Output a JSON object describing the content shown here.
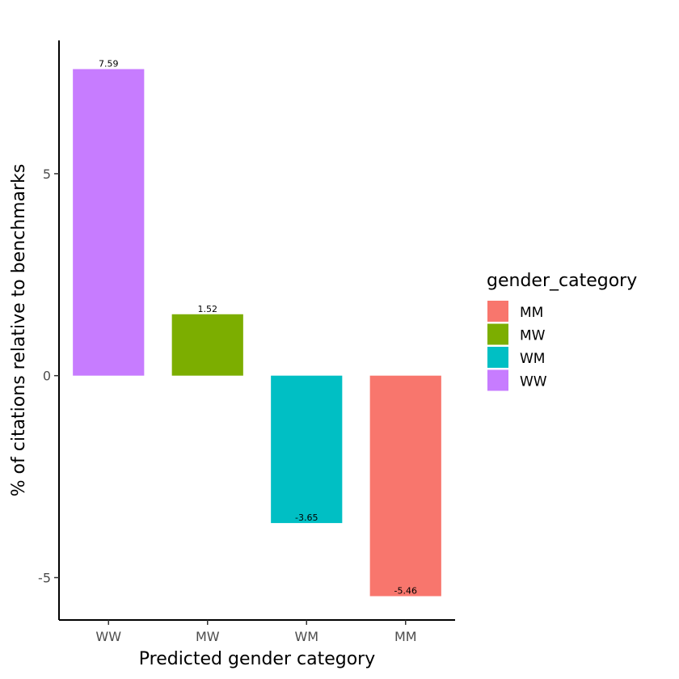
{
  "chart_data": {
    "type": "bar",
    "categories": [
      "WW",
      "MW",
      "WM",
      "MM"
    ],
    "values": [
      7.59,
      1.52,
      -3.65,
      -5.46
    ],
    "data_labels": [
      "7.59",
      "1.52",
      "-3.65",
      "-5.46"
    ],
    "bar_colors": [
      "#C77CFF",
      "#7CAE00",
      "#00BFC4",
      "#F8766D"
    ],
    "xlabel": "Predicted gender category",
    "ylabel": "% of citations relative to benchmarks",
    "ylim": [
      -6.05,
      8.3
    ],
    "yticks": [
      -5,
      0,
      5
    ],
    "ytick_labels": [
      "-5",
      "0",
      "5"
    ],
    "grid": false,
    "legend": {
      "title": "gender_category",
      "placement": "right",
      "entries": [
        {
          "label": "MM",
          "color": "#F8766D"
        },
        {
          "label": "MW",
          "color": "#7CAE00"
        },
        {
          "label": "WM",
          "color": "#00BFC4"
        },
        {
          "label": "WW",
          "color": "#C77CFF"
        }
      ]
    }
  }
}
